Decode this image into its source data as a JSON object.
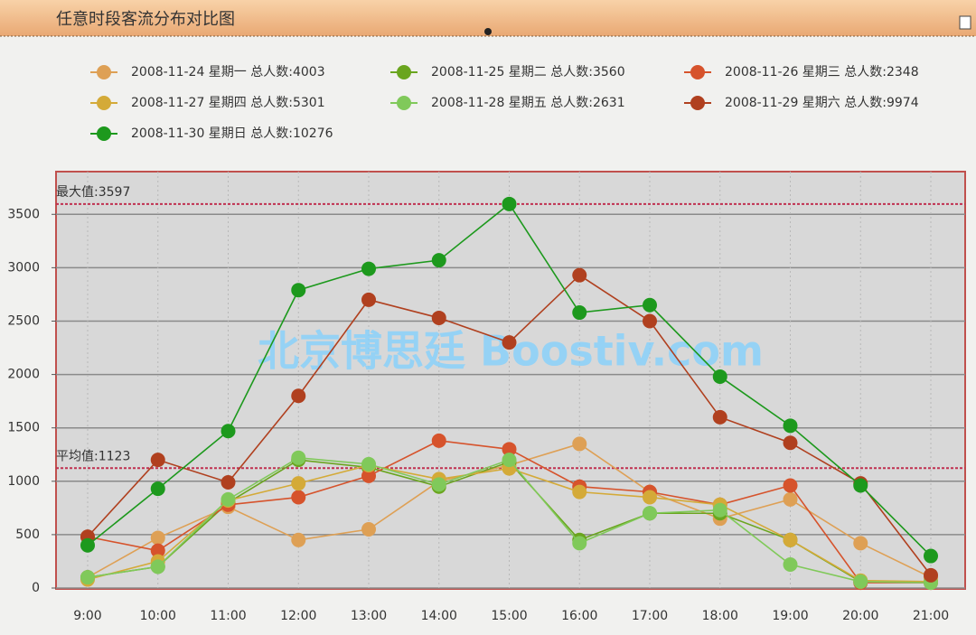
{
  "chart_data": {
    "type": "line",
    "title": "任意时段客流分布对比图",
    "watermark": "北京博思廷 Boostiv.com",
    "categories": [
      "9:00",
      "10:00",
      "11:00",
      "12:00",
      "13:00",
      "14:00",
      "15:00",
      "16:00",
      "17:00",
      "18:00",
      "19:00",
      "20:00",
      "21:00"
    ],
    "series": [
      {
        "name": "2008-11-24 星期一 总人数:4003",
        "color": "#dea055",
        "values": [
          100,
          470,
          760,
          450,
          550,
          1000,
          1150,
          1350,
          900,
          650,
          830,
          420,
          100
        ]
      },
      {
        "name": "2008-11-25 星期二 总人数:3560",
        "color": "#6aa51e",
        "values": [
          100,
          200,
          800,
          1200,
          1130,
          950,
          1180,
          450,
          700,
          700,
          450,
          60,
          60
        ]
      },
      {
        "name": "2008-11-26 星期三 总人数:2348",
        "color": "#d6532c",
        "values": [
          480,
          350,
          780,
          850,
          1050,
          1380,
          1300,
          950,
          900,
          780,
          960,
          50,
          50
        ]
      },
      {
        "name": "2008-11-27 星期四 总人数:5301",
        "color": "#d4aa38",
        "values": [
          80,
          250,
          820,
          980,
          1150,
          1020,
          1120,
          900,
          850,
          780,
          450,
          70,
          60
        ]
      },
      {
        "name": "2008-11-28 星期五 总人数:2631",
        "color": "#80c95a",
        "values": [
          100,
          200,
          830,
          1220,
          1160,
          970,
          1200,
          420,
          700,
          730,
          220,
          60,
          50
        ]
      },
      {
        "name": "2008-11-29 星期六 总人数:9974",
        "color": "#b0401f",
        "values": [
          480,
          1200,
          990,
          1800,
          2700,
          2530,
          2300,
          2930,
          2500,
          1600,
          1360,
          980,
          120
        ]
      },
      {
        "name": "2008-11-30 星期日 总人数:10276",
        "color": "#1d991d",
        "values": [
          400,
          930,
          1470,
          2790,
          2990,
          3070,
          3597,
          2580,
          2650,
          1980,
          1520,
          960,
          300
        ]
      }
    ],
    "reference_lines": [
      {
        "value": 3597,
        "label": "最大值:3597"
      },
      {
        "value": 1123,
        "label": "平均值:1123"
      }
    ],
    "ylim": [
      0,
      3900
    ],
    "yticks": [
      0,
      500,
      1000,
      1500,
      2000,
      2500,
      3000,
      3500
    ],
    "grid": true
  }
}
